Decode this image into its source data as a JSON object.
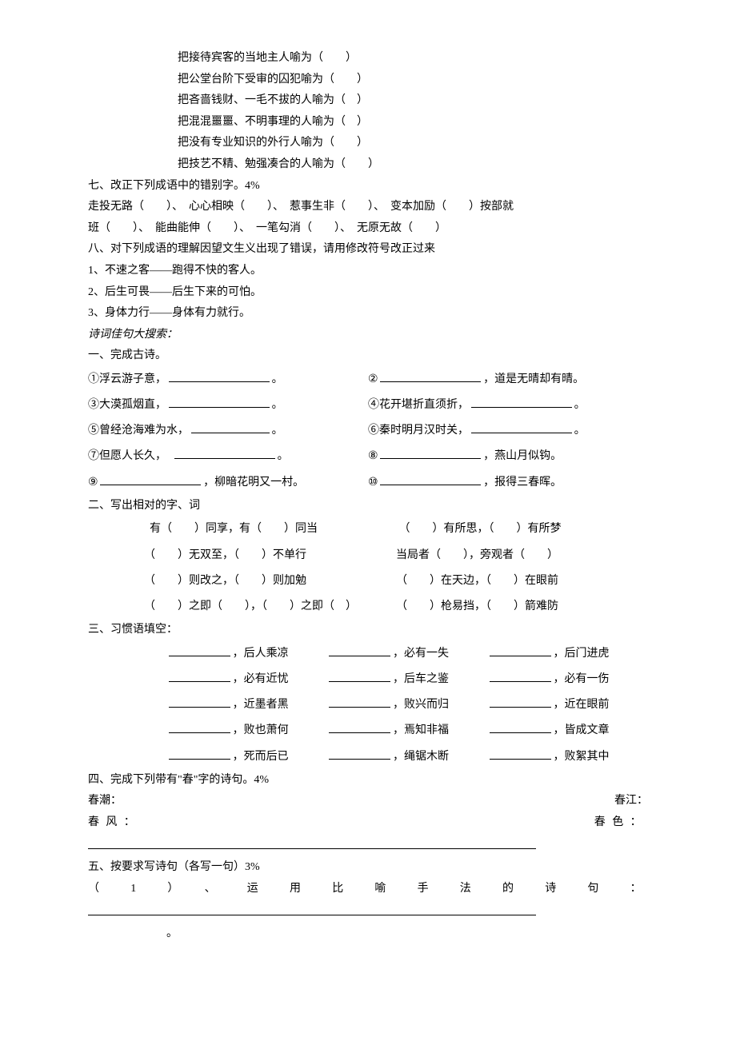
{
  "metaphors": [
    "把接待宾客的当地主人喻为（　　）",
    "把公堂台阶下受审的囚犯喻为（　　）",
    "把吝啬钱财、一毛不拔的人喻为（　）",
    "把混混噩噩、不明事理的人喻为（　）",
    "把没有专业知识的外行人喻为（　　）",
    "把技艺不精、勉强凑合的人喻为（　　）"
  ],
  "sec7": {
    "title": "七、改正下列成语中的错别字。4%",
    "line1": "走投无路（　　）、　心心相映（　　）、　惹事生非（　　）、　变本加励（　　）按部就",
    "line2": "班（　　）、　能曲能伸（　　）、　一笔勾消（　　）、　无原无故（　　）"
  },
  "sec8": {
    "title": "八、对下列成语的理解因望文生义出现了错误，请用修改符号改正过来",
    "items": [
      "1、不速之客——跑得不快的客人。",
      "2、后生可畏——后生下来的可怕。",
      "3、身体力行——身体有力就行。"
    ]
  },
  "poemSearchTitle": "诗词佳句大搜索：",
  "sec1Title": "一、完成古诗。",
  "poems": [
    [
      "①浮云游子意，",
      "。",
      "②",
      "，道是无晴却有晴。"
    ],
    [
      "③大漠孤烟直，",
      "。",
      "④花开堪折直须折，",
      "。"
    ],
    [
      "⑤曾经沧海难为水，",
      "。",
      "⑥秦时明月汉时关，",
      "。"
    ],
    [
      "⑦但愿人长久，",
      "。",
      "⑧",
      "，燕山月似钩。"
    ],
    [
      "⑨",
      "，柳暗花明又一村。",
      "⑩",
      "，报得三春晖。"
    ]
  ],
  "sec2Title": "二、写出相对的字、词",
  "pairs": [
    [
      "有（　　）同享，有（　　）同当",
      "（　　）有所思，（　　）有所梦"
    ],
    [
      "（　　）无双至，（　　）不单行",
      "当局者（　　），旁观者（　　）"
    ],
    [
      "（　　）则改之，（　　）则加勉",
      "（　　）在天边，（　　）在眼前"
    ],
    [
      "（　　）之即（　　），（　　）之即（　）",
      "（　　）枪易挡，（　　）箭难防"
    ]
  ],
  "sec3Title": "三、习惯语填空：",
  "idioms": [
    [
      "，后人乘凉",
      "，必有一失",
      "，后门进虎"
    ],
    [
      "，必有近忧",
      "，后车之鉴",
      "，必有一伤"
    ],
    [
      "，近墨者黑",
      "，败兴而归",
      "，近在眼前"
    ],
    [
      "，败也萧何",
      "，焉知非福",
      "，皆成文章"
    ],
    [
      "，死而后已",
      "，绳锯木断",
      "，败絮其中"
    ]
  ],
  "sec4Title": "四、完成下列带有\"春\"字的诗句。4%",
  "sec4row1": [
    "春潮：",
    "春江："
  ],
  "sec4row2": [
    "春风：",
    "春色："
  ],
  "sec5Title": "五、按要求写诗句（各写一句）3%",
  "sec5item": "（1）、运用比喻手法的诗句："
}
